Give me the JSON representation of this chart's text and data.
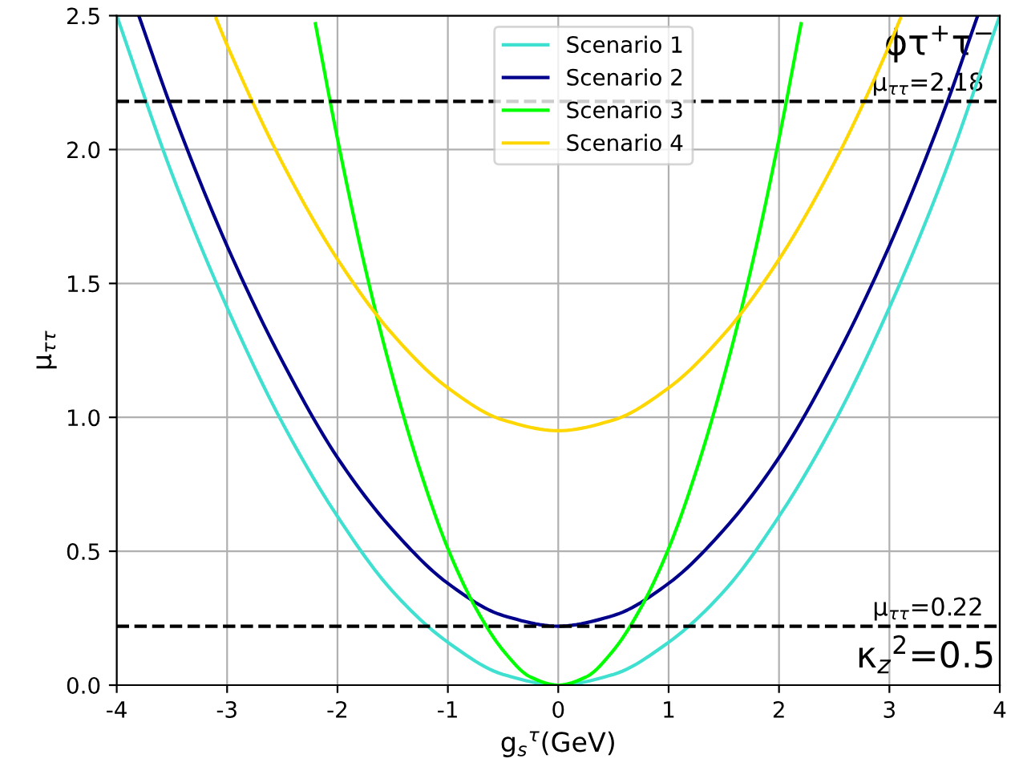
{
  "chart_data": {
    "type": "line",
    "xlabel": "g$_{s}$$^{τ}$(GeV)",
    "ylabel": "μ$_{ττ}$",
    "xlim": [
      -4,
      4
    ],
    "ylim": [
      0,
      2.5
    ],
    "xticks": [
      -4,
      -3,
      -2,
      -1,
      0,
      1,
      2,
      3,
      4
    ],
    "yticks": [
      {
        "value": 0,
        "label": "0.0"
      },
      0.5,
      {
        "value": 1,
        "label": "1.0"
      },
      1.5,
      {
        "value": 2,
        "label": "2.0"
      },
      2.5
    ],
    "grid": true,
    "legend": "top center",
    "line_style": "solid",
    "annotations": [
      "ϕτ$^{+}$τ$^{−}$",
      "κ$_{z}$$^{2}$=0.5"
    ],
    "ref_lines": [
      {
        "axis": "y",
        "value": 2.18,
        "label": "μ$_{ττ}$=2.18",
        "color": "#000000",
        "line_style": "dashed"
      },
      {
        "axis": "y",
        "value": 0.22,
        "label": "μ$_{ττ}$=0.22",
        "color": "#000000",
        "line_style": "dashed"
      }
    ],
    "series": [
      {
        "name": "Scenario 1",
        "color": "#40e0d0",
        "x": [
          -4,
          -3.5,
          -3,
          -2.5,
          -2,
          -1.5,
          -1,
          -0.5,
          0,
          0.5,
          1,
          1.5,
          2,
          2.5,
          3,
          3.5,
          4
        ],
        "values": [
          2.5,
          1.91,
          1.41,
          0.98,
          0.63,
          0.35,
          0.16,
          0.04,
          0,
          0.04,
          0.16,
          0.35,
          0.63,
          0.98,
          1.41,
          1.91,
          2.5
        ]
      },
      {
        "name": "Scenario 2",
        "color": "#00008b",
        "x": [
          -3.8,
          -3.5,
          -3,
          -2.5,
          -2,
          -1.5,
          -1,
          -0.5,
          0,
          0.5,
          1,
          1.5,
          2,
          2.5,
          3,
          3.5,
          3.8
        ],
        "values": [
          2.5,
          2.15,
          1.64,
          1.21,
          0.85,
          0.58,
          0.38,
          0.26,
          0.22,
          0.26,
          0.38,
          0.58,
          0.85,
          1.21,
          1.64,
          2.15,
          2.5
        ]
      },
      {
        "name": "Scenario 3",
        "color": "#00ff00",
        "x": [
          -2.2,
          -2,
          -1.75,
          -1.5,
          -1.25,
          -1,
          -0.75,
          -0.5,
          -0.25,
          0,
          0.25,
          0.5,
          0.75,
          1,
          1.25,
          1.5,
          1.75,
          2,
          2.2
        ],
        "values": [
          2.47,
          2.04,
          1.56,
          1.15,
          0.8,
          0.51,
          0.29,
          0.13,
          0.03,
          0,
          0.03,
          0.13,
          0.29,
          0.51,
          0.8,
          1.15,
          1.56,
          2.04,
          2.47
        ]
      },
      {
        "name": "Scenario 4",
        "color": "#ffd700",
        "x": [
          -3.1,
          -3,
          -2.5,
          -2,
          -1.5,
          -1,
          -0.5,
          0,
          0.5,
          1,
          1.5,
          2,
          2.5,
          3,
          3.1
        ],
        "values": [
          2.49,
          2.39,
          1.95,
          1.59,
          1.31,
          1.11,
          0.99,
          0.95,
          0.99,
          1.11,
          1.31,
          1.59,
          1.95,
          2.39,
          2.49
        ]
      }
    ]
  }
}
